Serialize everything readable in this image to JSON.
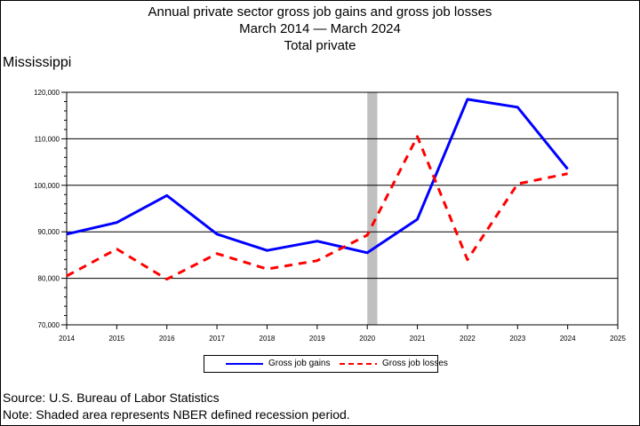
{
  "title": {
    "line1": "Annual private sector gross job gains and gross job losses",
    "line2": "March 2014 — March 2024",
    "line3": "Total private"
  },
  "region": "Mississippi",
  "chart_data": {
    "type": "line",
    "x": [
      2014,
      2015,
      2016,
      2017,
      2018,
      2019,
      2020,
      2021,
      2022,
      2023,
      2024
    ],
    "x_ticks": [
      2014,
      2015,
      2016,
      2017,
      2018,
      2019,
      2020,
      2021,
      2022,
      2023,
      2024,
      2025
    ],
    "xlim": [
      2014,
      2025
    ],
    "ylim": [
      70000,
      120000
    ],
    "y_ticks": [
      70000,
      80000,
      90000,
      100000,
      110000,
      120000
    ],
    "y_tick_labels": [
      "70,000",
      "80,000",
      "90,000",
      "100,000",
      "110,000",
      "120,000"
    ],
    "grid": "horizontal",
    "legend_position": "bottom",
    "recession_band": [
      2020,
      2020.2
    ],
    "series": [
      {
        "name": "Gross job gains",
        "color": "#0000ff",
        "style": "solid",
        "values": [
          89500,
          92000,
          97800,
          89500,
          86000,
          88000,
          85500,
          92700,
          118500,
          116800,
          103500
        ]
      },
      {
        "name": "Gross job losses",
        "color": "#ff0000",
        "style": "dashed",
        "values": [
          80500,
          86300,
          79800,
          85300,
          82000,
          83800,
          89300,
          110500,
          84000,
          100300,
          102500
        ]
      }
    ]
  },
  "colors": {
    "recession": "#c0c0c0"
  },
  "footer": {
    "source": "Source: U.S. Bureau of Labor Statistics",
    "note": "Note: Shaded area represents NBER defined recession period."
  }
}
